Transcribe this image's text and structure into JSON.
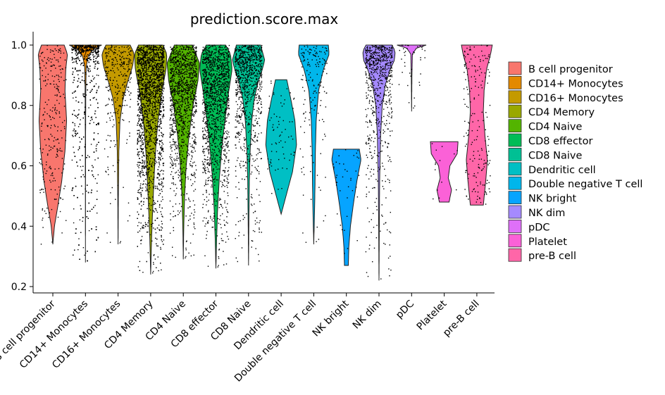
{
  "chart_data": {
    "type": "violin",
    "title": "prediction.score.max",
    "xlabel": "",
    "ylabel": "",
    "ylim": [
      0.18,
      1.04
    ],
    "yticks": [
      0.2,
      0.4,
      0.6,
      0.8,
      1.0
    ],
    "ytick_labels": [
      "0.2",
      "0.4",
      "0.6",
      "0.8",
      "1.0"
    ],
    "legend_position": "right",
    "categories": [
      "B cell progenitor",
      "CD14+ Monocytes",
      "CD16+ Monocytes",
      "CD4 Memory",
      "CD4 Naive",
      "CD8 effector",
      "CD8 Naive",
      "Dendritic cell",
      "Double negative T cell",
      "NK bright",
      "NK dim",
      "pDC",
      "Platelet",
      "pre-B cell"
    ],
    "colors": [
      "#F8766D",
      "#E38900",
      "#C49A00",
      "#99A800",
      "#53B400",
      "#00BC56",
      "#00C094",
      "#00BFC4",
      "#00B6EB",
      "#06A4FF",
      "#A58AFF",
      "#DF70F8",
      "#FB61D7",
      "#FF66A8"
    ],
    "series": [
      {
        "name": "B cell progenitor",
        "min": 0.34,
        "max": 1.0,
        "points": 260,
        "profile": [
          [
            0.34,
            0
          ],
          [
            0.4,
            0.1
          ],
          [
            0.48,
            0.35
          ],
          [
            0.55,
            0.55
          ],
          [
            0.65,
            0.75
          ],
          [
            0.75,
            0.85
          ],
          [
            0.85,
            0.75
          ],
          [
            0.92,
            0.8
          ],
          [
            0.97,
            0.9
          ],
          [
            1.0,
            0.7
          ]
        ]
      },
      {
        "name": "CD14+ Monocytes",
        "min": 0.28,
        "max": 1.0,
        "points": 1400,
        "profile": [
          [
            0.28,
            0
          ],
          [
            0.5,
            0.005
          ],
          [
            0.7,
            0.01
          ],
          [
            0.85,
            0.02
          ],
          [
            0.93,
            0.05
          ],
          [
            0.97,
            0.2
          ],
          [
            0.99,
            0.6
          ],
          [
            1.0,
            1.0
          ]
        ]
      },
      {
        "name": "CD16+ Monocytes",
        "min": 0.34,
        "max": 1.0,
        "points": 300,
        "profile": [
          [
            0.34,
            0
          ],
          [
            0.5,
            0.02
          ],
          [
            0.65,
            0.05
          ],
          [
            0.75,
            0.12
          ],
          [
            0.82,
            0.3
          ],
          [
            0.88,
            0.6
          ],
          [
            0.93,
            0.9
          ],
          [
            0.97,
            1.0
          ],
          [
            1.0,
            0.75
          ]
        ]
      },
      {
        "name": "CD4 Memory",
        "min": 0.24,
        "max": 1.0,
        "points": 2600,
        "profile": [
          [
            0.24,
            0
          ],
          [
            0.35,
            0.05
          ],
          [
            0.45,
            0.12
          ],
          [
            0.55,
            0.2
          ],
          [
            0.65,
            0.3
          ],
          [
            0.75,
            0.45
          ],
          [
            0.85,
            0.7
          ],
          [
            0.92,
            0.95
          ],
          [
            0.97,
            1.0
          ],
          [
            1.0,
            0.75
          ]
        ]
      },
      {
        "name": "CD4 Naive",
        "min": 0.29,
        "max": 1.0,
        "points": 1300,
        "profile": [
          [
            0.29,
            0
          ],
          [
            0.4,
            0.03
          ],
          [
            0.5,
            0.08
          ],
          [
            0.6,
            0.18
          ],
          [
            0.7,
            0.35
          ],
          [
            0.8,
            0.6
          ],
          [
            0.88,
            0.9
          ],
          [
            0.94,
            1.0
          ],
          [
            1.0,
            0.55
          ]
        ]
      },
      {
        "name": "CD8 effector",
        "min": 0.26,
        "max": 1.0,
        "points": 1400,
        "profile": [
          [
            0.26,
            0
          ],
          [
            0.35,
            0.04
          ],
          [
            0.45,
            0.1
          ],
          [
            0.55,
            0.2
          ],
          [
            0.65,
            0.35
          ],
          [
            0.75,
            0.55
          ],
          [
            0.85,
            0.8
          ],
          [
            0.92,
            1.0
          ],
          [
            0.97,
            0.9
          ],
          [
            1.0,
            0.6
          ]
        ]
      },
      {
        "name": "CD8 Naive",
        "min": 0.27,
        "max": 1.0,
        "points": 900,
        "profile": [
          [
            0.27,
            0
          ],
          [
            0.4,
            0.02
          ],
          [
            0.55,
            0.05
          ],
          [
            0.65,
            0.1
          ],
          [
            0.75,
            0.2
          ],
          [
            0.82,
            0.35
          ],
          [
            0.87,
            0.55
          ],
          [
            0.91,
            0.8
          ],
          [
            0.95,
            1.0
          ],
          [
            1.0,
            0.75
          ]
        ]
      },
      {
        "name": "Dendritic cell",
        "min": 0.44,
        "max": 0.885,
        "points": 70,
        "profile": [
          [
            0.44,
            0
          ],
          [
            0.5,
            0.3
          ],
          [
            0.58,
            0.7
          ],
          [
            0.67,
            0.95
          ],
          [
            0.75,
            0.85
          ],
          [
            0.82,
            0.6
          ],
          [
            0.885,
            0.35
          ]
        ]
      },
      {
        "name": "Double negative T cell",
        "min": 0.34,
        "max": 1.0,
        "points": 160,
        "profile": [
          [
            0.34,
            0
          ],
          [
            0.45,
            0.05
          ],
          [
            0.55,
            0.08
          ],
          [
            0.65,
            0.1
          ],
          [
            0.75,
            0.15
          ],
          [
            0.85,
            0.3
          ],
          [
            0.92,
            0.6
          ],
          [
            0.97,
            0.95
          ],
          [
            1.0,
            0.9
          ]
        ]
      },
      {
        "name": "NK bright",
        "min": 0.27,
        "max": 0.655,
        "points": 40,
        "profile": [
          [
            0.27,
            0.12
          ],
          [
            0.33,
            0.15
          ],
          [
            0.4,
            0.25
          ],
          [
            0.48,
            0.45
          ],
          [
            0.55,
            0.65
          ],
          [
            0.62,
            0.9
          ],
          [
            0.655,
            0.8
          ]
        ]
      },
      {
        "name": "NK dim",
        "min": 0.22,
        "max": 1.0,
        "points": 700,
        "profile": [
          [
            0.22,
            0
          ],
          [
            0.4,
            0.02
          ],
          [
            0.55,
            0.04
          ],
          [
            0.7,
            0.1
          ],
          [
            0.8,
            0.2
          ],
          [
            0.87,
            0.4
          ],
          [
            0.92,
            0.7
          ],
          [
            0.95,
            0.95
          ],
          [
            0.98,
            1.0
          ],
          [
            1.0,
            0.8
          ]
        ]
      },
      {
        "name": "pDC",
        "min": 0.78,
        "max": 1.0,
        "points": 40,
        "profile": [
          [
            0.78,
            0
          ],
          [
            0.9,
            0.02
          ],
          [
            0.97,
            0.05
          ],
          [
            0.99,
            0.3
          ],
          [
            1.0,
            0.9
          ]
        ]
      },
      {
        "name": "Platelet",
        "min": 0.48,
        "max": 0.68,
        "points": 14,
        "profile": [
          [
            0.48,
            0.3
          ],
          [
            0.52,
            0.45
          ],
          [
            0.56,
            0.25
          ],
          [
            0.6,
            0.35
          ],
          [
            0.64,
            0.8
          ],
          [
            0.68,
            0.85
          ]
        ]
      },
      {
        "name": "pre-B cell",
        "min": 0.47,
        "max": 1.0,
        "points": 190,
        "profile": [
          [
            0.47,
            0.4
          ],
          [
            0.55,
            0.55
          ],
          [
            0.62,
            0.65
          ],
          [
            0.7,
            0.5
          ],
          [
            0.78,
            0.4
          ],
          [
            0.85,
            0.45
          ],
          [
            0.92,
            0.6
          ],
          [
            0.97,
            0.85
          ],
          [
            1.0,
            0.95
          ]
        ]
      }
    ]
  }
}
